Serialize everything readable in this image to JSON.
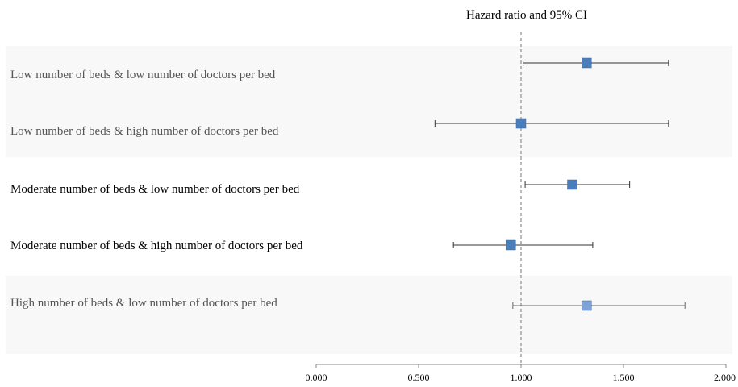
{
  "chart_data": {
    "type": "forest",
    "title": "Hazard ratio and 95% CI",
    "xlim": [
      0,
      2
    ],
    "ticks": [
      0,
      0.5,
      1,
      1.5,
      2
    ],
    "tick_labels": [
      "0.000",
      "0.500",
      "1.000",
      "1.500",
      "2.000"
    ],
    "reference_line": 1.0,
    "rows": [
      {
        "label": "Low number of beds & low number of doctors per bed",
        "hr": 1.32,
        "lower": 1.01,
        "upper": 1.72,
        "shaded": true,
        "label_color": "#555555",
        "marker_color": "#4a7ebb"
      },
      {
        "label": "Low number of beds & high number of doctors per bed",
        "hr": 1.0,
        "lower": 0.58,
        "upper": 1.72,
        "shaded": true,
        "label_color": "#555555",
        "marker_color": "#4a7ebb"
      },
      {
        "label": "Moderate number of beds & low number of doctors per bed",
        "hr": 1.25,
        "lower": 1.02,
        "upper": 1.53,
        "shaded": false,
        "label_color": "#000000",
        "marker_color": "#4a7ebb"
      },
      {
        "label": "Moderate number of  beds & high number of doctors per bed",
        "hr": 0.95,
        "lower": 0.67,
        "upper": 1.35,
        "shaded": false,
        "label_color": "#000000",
        "marker_color": "#4a7ebb"
      },
      {
        "label": "High number of beds & low number of doctors per bed",
        "hr": 1.32,
        "lower": 0.96,
        "upper": 1.8,
        "shaded": true,
        "label_color": "#555555",
        "marker_color": "#7fa3d6"
      }
    ]
  }
}
